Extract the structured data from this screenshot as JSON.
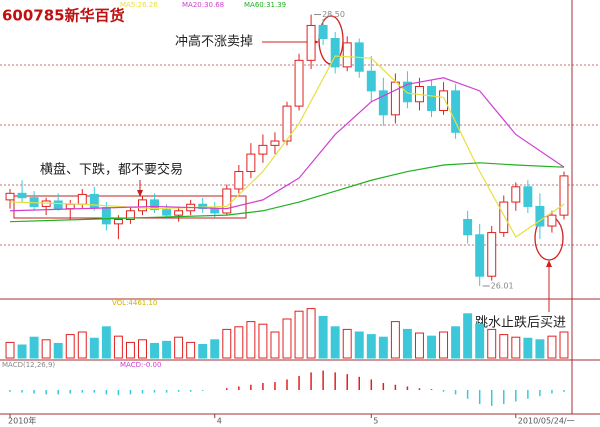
{
  "chart_data": {
    "type": "candlestick",
    "title": "600785新华百货",
    "categories": [
      "2010年",
      null,
      null,
      null,
      null,
      null,
      null,
      null,
      null,
      null,
      null,
      null,
      null,
      null,
      null,
      null,
      null,
      "4",
      null,
      null,
      null,
      null,
      null,
      null,
      null,
      null,
      null,
      null,
      null,
      null,
      "5",
      null,
      null,
      null,
      null,
      null,
      null,
      null,
      null,
      null,
      null,
      null,
      "2010/05/24/一",
      null,
      null,
      null,
      null
    ],
    "open": [
      26.8,
      26.86,
      26.82,
      26.74,
      26.79,
      26.72,
      26.76,
      26.85,
      26.73,
      26.58,
      26.62,
      26.7,
      26.8,
      26.71,
      26.66,
      26.7,
      26.76,
      26.72,
      26.68,
      26.9,
      27.06,
      27.22,
      27.3,
      27.34,
      27.66,
      28.08,
      28.4,
      28.28,
      28.02,
      28.24,
      27.98,
      27.8,
      27.58,
      27.88,
      27.7,
      27.84,
      27.62,
      27.8,
      26.62,
      26.48,
      26.1,
      26.5,
      26.78,
      26.92,
      26.74,
      26.56,
      26.66
    ],
    "high": [
      26.9,
      26.98,
      26.88,
      26.82,
      26.86,
      26.8,
      26.9,
      26.92,
      26.78,
      26.66,
      26.74,
      26.84,
      26.86,
      26.76,
      26.74,
      26.8,
      26.82,
      26.78,
      26.94,
      27.12,
      27.32,
      27.4,
      27.42,
      27.7,
      28.14,
      28.5,
      28.46,
      28.34,
      28.3,
      28.28,
      28.12,
      27.92,
      27.96,
      27.98,
      27.92,
      27.9,
      27.88,
      27.86,
      26.7,
      26.58,
      26.56,
      26.84,
      26.96,
      26.98,
      26.86,
      26.7,
      27.06
    ],
    "low": [
      26.72,
      26.78,
      26.7,
      26.66,
      26.7,
      26.62,
      26.72,
      26.7,
      26.52,
      26.44,
      26.58,
      26.66,
      26.68,
      26.62,
      26.6,
      26.66,
      26.68,
      26.64,
      26.66,
      26.86,
      27.0,
      27.14,
      27.22,
      27.3,
      27.62,
      28.0,
      28.22,
      27.96,
      27.98,
      27.92,
      27.7,
      27.48,
      27.5,
      27.64,
      27.62,
      27.56,
      27.58,
      27.36,
      26.4,
      26.01,
      26.06,
      26.46,
      26.7,
      26.68,
      26.44,
      26.5,
      26.62
    ],
    "close": [
      26.86,
      26.82,
      26.74,
      26.79,
      26.72,
      26.76,
      26.85,
      26.73,
      26.58,
      26.62,
      26.7,
      26.8,
      26.71,
      26.66,
      26.7,
      26.76,
      26.72,
      26.68,
      26.9,
      27.06,
      27.22,
      27.3,
      27.34,
      27.66,
      28.08,
      28.4,
      28.28,
      28.02,
      28.24,
      27.98,
      27.8,
      27.58,
      27.88,
      27.7,
      27.84,
      27.62,
      27.8,
      27.42,
      26.48,
      26.1,
      26.5,
      26.78,
      26.92,
      26.74,
      26.56,
      26.66,
      27.02
    ],
    "up_color": "#e02020",
    "down_color": "#3cc8d8",
    "ylim": [
      25.9,
      28.56
    ],
    "price_labels": [
      {
        "value": 28.5,
        "label": "28.50"
      },
      {
        "value": 26.01,
        "label": "26.01"
      }
    ],
    "lines": [
      {
        "name": "MA5:26.26",
        "color": "#e6e040",
        "x": [
          0,
          6,
          12,
          18,
          21,
          24,
          27,
          30,
          33,
          36,
          39,
          42,
          46
        ],
        "values": [
          26.78,
          26.76,
          26.72,
          26.74,
          27.06,
          27.5,
          28.12,
          28.1,
          27.78,
          27.74,
          27.06,
          26.46,
          26.76
        ]
      },
      {
        "name": "MA20:30.68",
        "color": "#d040d0",
        "x": [
          0,
          6,
          12,
          18,
          21,
          24,
          27,
          30,
          33,
          36,
          39,
          42,
          46
        ],
        "values": [
          26.7,
          26.72,
          26.74,
          26.72,
          26.8,
          27.0,
          27.4,
          27.7,
          27.86,
          27.92,
          27.8,
          27.4,
          27.1
        ]
      },
      {
        "name": "MA60:31.39",
        "color": "#20b020",
        "x": [
          0,
          6,
          12,
          18,
          21,
          24,
          27,
          30,
          33,
          36,
          39,
          42,
          46
        ],
        "values": [
          26.6,
          26.62,
          26.64,
          26.66,
          26.7,
          26.78,
          26.88,
          26.98,
          27.06,
          27.12,
          27.14,
          27.12,
          27.1
        ]
      }
    ],
    "annotations": [
      "冲高不涨卖掉",
      "横盘、下跌，都不要交易",
      "跳水止跌后买进"
    ],
    "volume": {
      "name": "VOL:4461.10",
      "ylim": [
        0,
        10000
      ],
      "values": [
        3000,
        2500,
        4000,
        3500,
        2800,
        4500,
        5000,
        3800,
        6000,
        4200,
        3000,
        3500,
        2800,
        3200,
        4000,
        3000,
        2600,
        3500,
        5500,
        6000,
        7000,
        6500,
        5000,
        7500,
        9000,
        9500,
        8000,
        6000,
        5500,
        5000,
        4500,
        4000,
        7000,
        5500,
        4800,
        4200,
        5000,
        6000,
        8500,
        6500,
        5500,
        4500,
        4000,
        3800,
        3500,
        4200,
        5000
      ]
    },
    "macd": {
      "name": "MACD(12,26,9)",
      "value_label": "MACD:-0.00",
      "ylim": [
        -0.25,
        0.25
      ],
      "values": [
        -0.02,
        -0.03,
        -0.04,
        -0.05,
        -0.05,
        -0.04,
        -0.03,
        -0.03,
        -0.05,
        -0.06,
        -0.05,
        -0.04,
        -0.03,
        -0.03,
        -0.02,
        -0.02,
        -0.01,
        0.0,
        0.02,
        0.04,
        0.06,
        0.08,
        0.09,
        0.12,
        0.16,
        0.2,
        0.22,
        0.2,
        0.18,
        0.15,
        0.12,
        0.08,
        0.06,
        0.04,
        0.02,
        0.01,
        -0.02,
        -0.05,
        -0.1,
        -0.16,
        -0.18,
        -0.16,
        -0.13,
        -0.1,
        -0.07,
        -0.04,
        -0.02
      ]
    }
  }
}
